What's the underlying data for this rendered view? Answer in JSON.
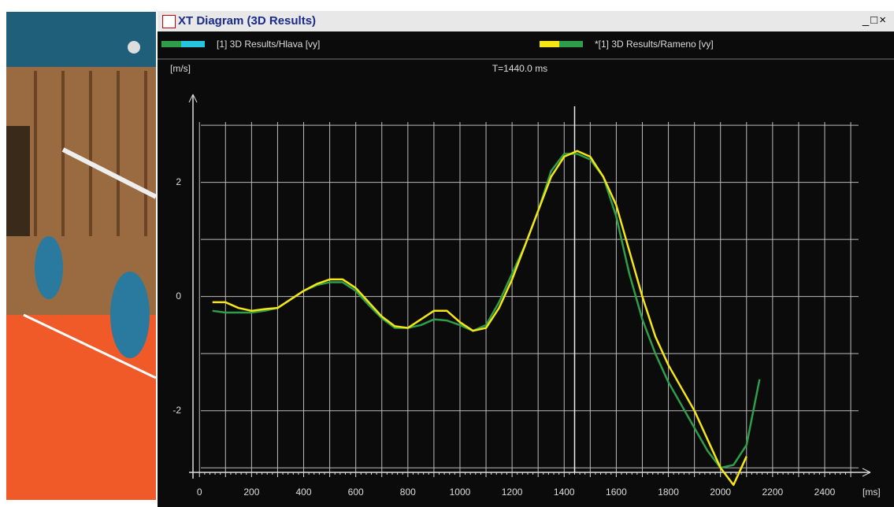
{
  "window": {
    "title": "XT Diagram (3D Results)"
  },
  "chart_data": {
    "type": "line",
    "y_label": "[m/s]",
    "x_label": "[ms]",
    "annotation": "T=1440.0 ms",
    "cursor_x": 1440,
    "x": [
      50,
      100,
      150,
      200,
      250,
      300,
      350,
      400,
      450,
      500,
      550,
      600,
      650,
      700,
      750,
      800,
      850,
      900,
      950,
      1000,
      1050,
      1100,
      1150,
      1200,
      1250,
      1300,
      1350,
      1400,
      1450,
      1500,
      1550,
      1600,
      1650,
      1700,
      1750,
      1800,
      1850,
      1900,
      1950,
      2000,
      2050,
      2100,
      2150
    ],
    "series": [
      {
        "name": "[1] 3D Results/Hlava [vy]",
        "color": "#2e9e4a",
        "swatch": "#27c4e0",
        "values": [
          -0.25,
          -0.28,
          -0.28,
          -0.28,
          -0.25,
          -0.2,
          -0.05,
          0.1,
          0.2,
          0.25,
          0.25,
          0.1,
          -0.15,
          -0.38,
          -0.55,
          -0.55,
          -0.5,
          -0.4,
          -0.42,
          -0.5,
          -0.6,
          -0.5,
          -0.1,
          0.4,
          0.9,
          1.5,
          2.2,
          2.5,
          2.5,
          2.4,
          2.1,
          1.4,
          0.4,
          -0.4,
          -1.0,
          -1.5,
          -1.9,
          -2.3,
          -2.7,
          -3.0,
          -2.95,
          -2.6,
          -1.45
        ]
      },
      {
        "name": "*[1] 3D Results/Rameno [vy]",
        "color": "#f5e614",
        "swatch": "#2e9e4a",
        "values": [
          -0.1,
          -0.1,
          -0.2,
          -0.25,
          -0.22,
          -0.2,
          -0.05,
          0.1,
          0.22,
          0.3,
          0.3,
          0.15,
          -0.1,
          -0.35,
          -0.52,
          -0.55,
          -0.4,
          -0.25,
          -0.25,
          -0.45,
          -0.6,
          -0.55,
          -0.2,
          0.3,
          0.9,
          1.5,
          2.1,
          2.45,
          2.55,
          2.45,
          2.1,
          1.6,
          0.8,
          0.0,
          -0.7,
          -1.2,
          -1.6,
          -2.0,
          -2.5,
          -3.0,
          -3.3,
          -2.8,
          null
        ]
      }
    ],
    "xlim": [
      -40,
      2530
    ],
    "ylim": [
      -3.08,
      3.54
    ],
    "xticks": [
      0,
      200,
      400,
      600,
      800,
      1000,
      1200,
      1400,
      1600,
      1800,
      2000,
      2200,
      2400
    ],
    "yticks": [
      -2,
      0,
      2
    ],
    "xminor": [
      100,
      300,
      500,
      700,
      900,
      1100,
      1300,
      1500,
      1700,
      1900,
      2100,
      2300,
      2500
    ],
    "yminor": [
      -3,
      -1,
      1,
      3
    ],
    "grid": true
  }
}
